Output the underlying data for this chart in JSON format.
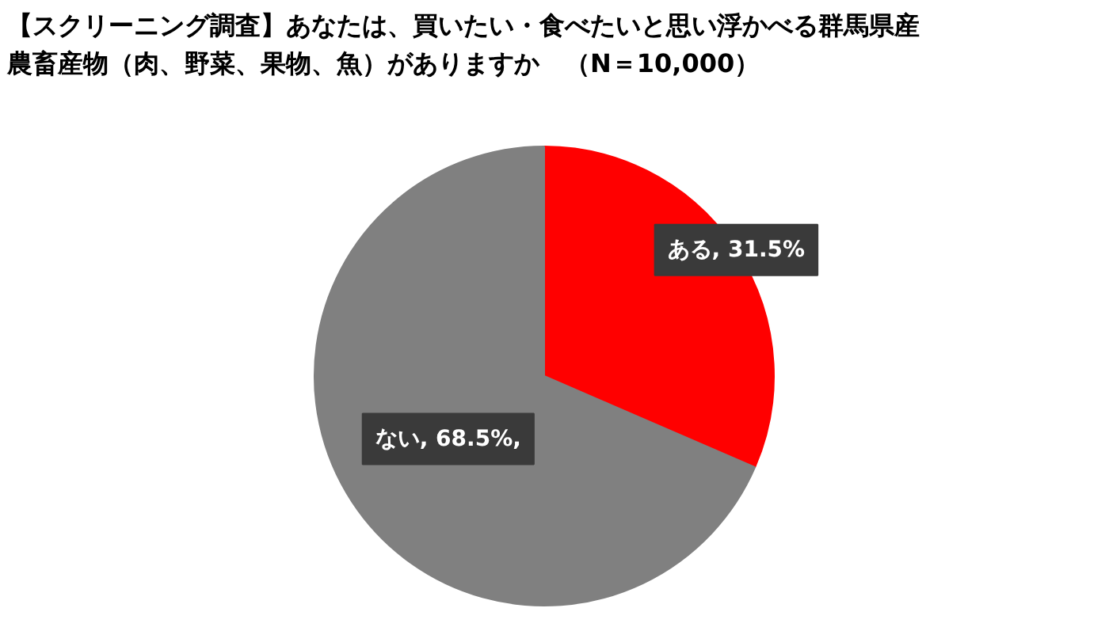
{
  "chart_data": {
    "type": "pie",
    "title": "【スクリーニング調査】あなたは、買いたい・食べたいと思い浮かべる群馬県産農畜産物（肉、野菜、果物、魚）がありますか　（N＝10,000）",
    "categories": [
      "ある",
      "ない"
    ],
    "values": [
      31.5,
      68.5
    ],
    "colors": [
      "#ff0000",
      "#808080"
    ],
    "value_labels": [
      "31.5%",
      "68.5%,"
    ],
    "legend": false
  }
}
